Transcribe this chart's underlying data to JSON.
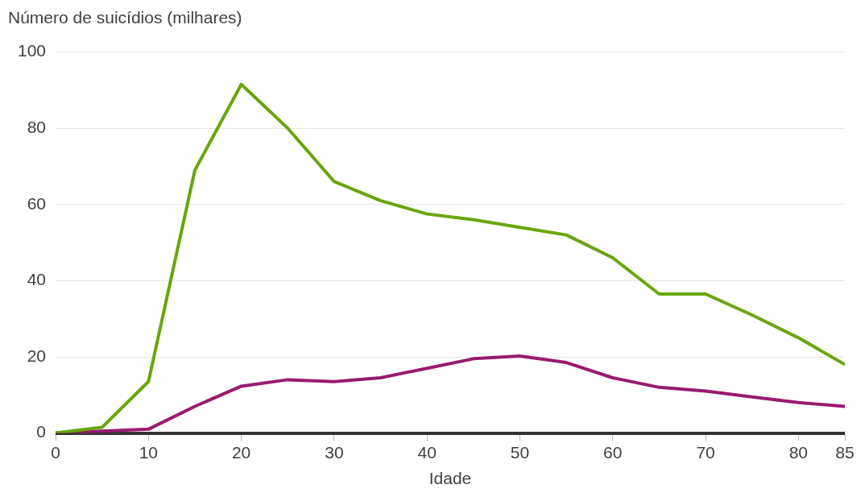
{
  "chart_data": {
    "type": "line",
    "ylabel": "Número de suicídios (milhares)",
    "xlabel": "Idade",
    "x": [
      0,
      5,
      10,
      15,
      20,
      25,
      30,
      35,
      40,
      45,
      50,
      55,
      60,
      65,
      70,
      75,
      80,
      85
    ],
    "series": [
      {
        "color": "#6aa50e",
        "values": [
          0,
          1.5,
          13.5,
          69,
          91.5,
          80,
          66,
          61,
          57.5,
          56,
          54,
          52,
          46,
          36.5,
          36.5,
          31,
          25,
          18
        ]
      },
      {
        "color": "#991b6e",
        "values": [
          0,
          0.5,
          1,
          7,
          12.3,
          14,
          13.5,
          14.5,
          17,
          19.5,
          20.2,
          18.5,
          14.5,
          12,
          11,
          9.5,
          8,
          7
        ]
      }
    ],
    "xlim": [
      0,
      85
    ],
    "xticks": [
      0,
      10,
      20,
      30,
      40,
      50,
      60,
      70,
      80,
      85
    ],
    "ylim": [
      0,
      100
    ],
    "yticks": [
      0,
      20,
      40,
      60,
      80,
      100
    ],
    "grid": "y",
    "legend": false,
    "marker": "none"
  }
}
